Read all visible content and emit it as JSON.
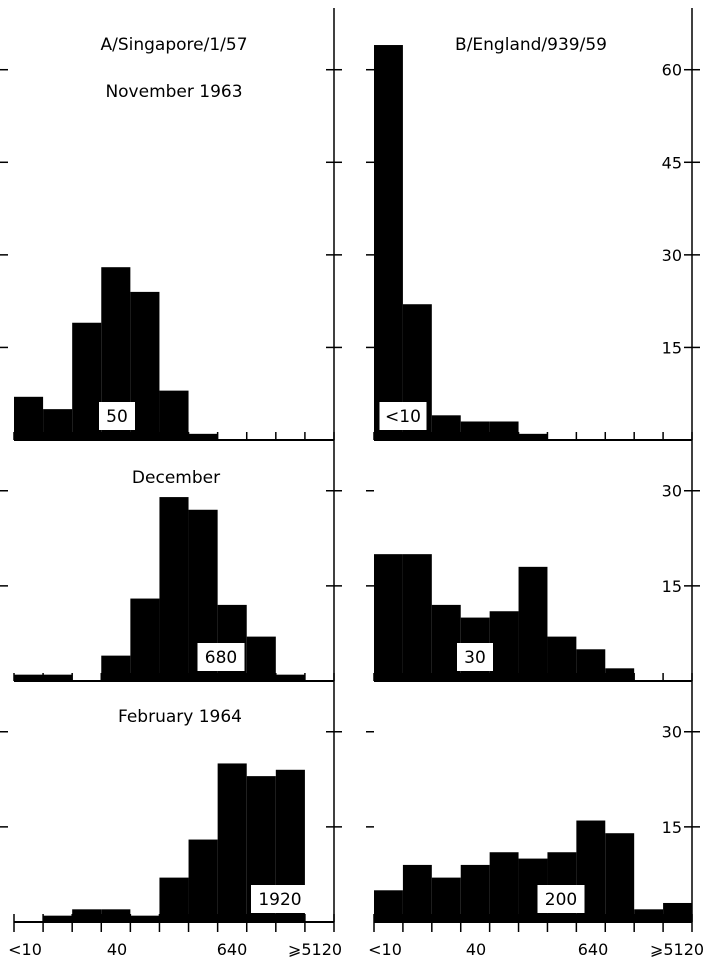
{
  "chart_data": [
    {
      "type": "bar",
      "row": "November 1963",
      "column": "A/Singapore/1/57",
      "title": "A/Singapore/1/57",
      "subtitle": "November 1963",
      "ylim": [
        0,
        70
      ],
      "yticks": [],
      "categories": [
        "<10",
        "10",
        "20",
        "40",
        "80",
        "160",
        "320",
        "640",
        "1280",
        "2560",
        ">=5120"
      ],
      "values": [
        7,
        5,
        19,
        28,
        24,
        8,
        1,
        0,
        0,
        0,
        0
      ],
      "annotation": "50"
    },
    {
      "type": "bar",
      "row": "November 1963",
      "column": "B/England/939/59",
      "title": "B/England/939/59",
      "ylim": [
        0,
        70
      ],
      "yticks": [
        "15",
        "30",
        "45",
        "60"
      ],
      "categories": [
        "<10",
        "10",
        "20",
        "40",
        "80",
        "160",
        "320",
        "640",
        "1280",
        "2560",
        ">=5120"
      ],
      "values": [
        64,
        22,
        4,
        3,
        3,
        1,
        0,
        0,
        0,
        0,
        0
      ],
      "annotation": "<10"
    },
    {
      "type": "bar",
      "row": "December",
      "column": "A/Singapore/1/57",
      "title": "December",
      "ylim": [
        0,
        38
      ],
      "yticks": [],
      "categories": [
        "<10",
        "10",
        "20",
        "40",
        "80",
        "160",
        "320",
        "640",
        "1280",
        "2560",
        ">=5120"
      ],
      "values": [
        1,
        1,
        0,
        4,
        13,
        29,
        27,
        12,
        7,
        1,
        0
      ],
      "annotation": "680"
    },
    {
      "type": "bar",
      "row": "December",
      "column": "B/England/939/59",
      "ylim": [
        0,
        38
      ],
      "yticks": [
        "15",
        "30"
      ],
      "categories": [
        "<10",
        "10",
        "20",
        "40",
        "80",
        "160",
        "320",
        "640",
        "1280",
        "2560",
        ">=5120"
      ],
      "values": [
        20,
        20,
        12,
        10,
        11,
        18,
        7,
        5,
        2,
        0,
        0
      ],
      "annotation": "30"
    },
    {
      "type": "bar",
      "row": "February 1964",
      "column": "A/Singapore/1/57",
      "title": "February 1964",
      "ylim": [
        0,
        38
      ],
      "yticks": [],
      "categories": [
        "<10",
        "10",
        "20",
        "40",
        "80",
        "160",
        "320",
        "640",
        "1280",
        "2560",
        ">=5120"
      ],
      "values": [
        0,
        1,
        2,
        2,
        1,
        7,
        13,
        25,
        23,
        24,
        0
      ],
      "annotation": "1920"
    },
    {
      "type": "bar",
      "row": "February 1964",
      "column": "B/England/939/59",
      "ylim": [
        0,
        38
      ],
      "yticks": [
        "15",
        "30"
      ],
      "categories": [
        "<10",
        "10",
        "20",
        "40",
        "80",
        "160",
        "320",
        "640",
        "1280",
        "2560",
        ">=5120"
      ],
      "values": [
        5,
        9,
        7,
        9,
        11,
        10,
        11,
        16,
        14,
        2,
        3
      ],
      "annotation": "200"
    }
  ],
  "x_tick_labels": [
    "<10",
    "40",
    "640",
    "⩾5120"
  ],
  "colors": {
    "bar": "#000000",
    "background": "#ffffff",
    "annotation_box": "#ffffff"
  }
}
